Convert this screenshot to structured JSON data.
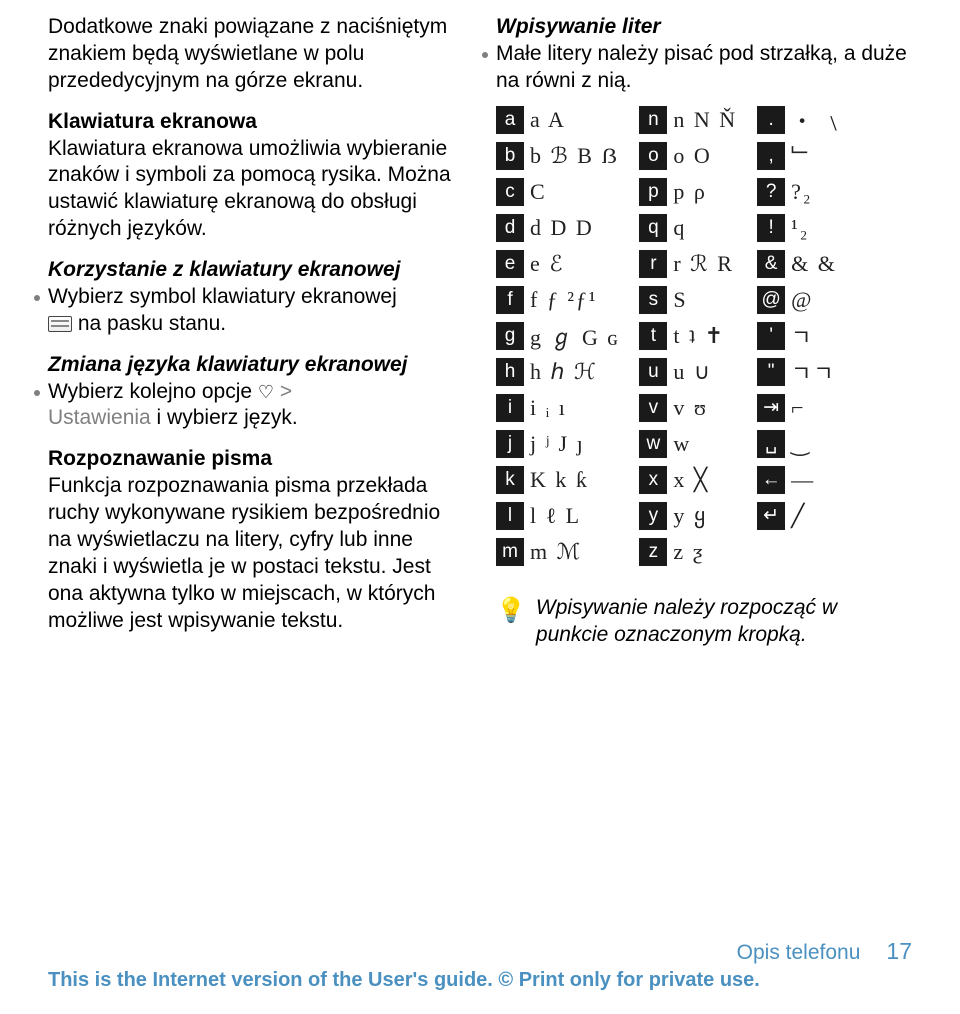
{
  "left": {
    "intro": "Dodatkowe znaki powiązane z naciśniętym znakiem będą wyświetlane w polu przededycyjnym na górze ekranu.",
    "kbd_title": "Klawiatura ekranowa",
    "kbd_body": "Klawiatura ekranowa umożliwia wybieranie znaków i symboli za pomocą rysika. Można ustawić klawiaturę ekranową do obsługi różnych języków.",
    "use_kbd_title": "Korzystanie z klawiatury ekranowej",
    "use_kbd_bullet_a": "Wybierz symbol klawiatury ekranowej",
    "use_kbd_bullet_b": "na pasku stanu.",
    "lang_title": "Zmiana języka klawiatury ekranowej",
    "lang_bullet_a": "Wybierz kolejno opcje ",
    "lang_bullet_b": "Ustawienia",
    "lang_bullet_c": " i wybierz język.",
    "hand_title": "Rozpoznawanie pisma",
    "hand_body": "Funkcja rozpoznawania pisma przekłada ruchy wykonywane rysikiem bezpośrednio na wyświetlaczu na litery, cyfry lub inne znaki i wyświetla je w postaci tekstu. Jest ona aktywna tylko w miejscach, w których możliwe jest wpisywanie tekstu."
  },
  "right": {
    "title": "Wpisywanie liter",
    "bullet": "Małe litery należy pisać pod strzałką, a duże na równi z nią.",
    "tip": "Wpisywanie należy rozpocząć w punkcie oznaczonym kropką.",
    "glyph_columns": [
      [
        {
          "key": "a",
          "sample": "a A"
        },
        {
          "key": "b",
          "sample": "b ℬ B ẞ"
        },
        {
          "key": "c",
          "sample": "C"
        },
        {
          "key": "d",
          "sample": "d D D"
        },
        {
          "key": "e",
          "sample": "e ℰ"
        },
        {
          "key": "f",
          "sample": "f ƒ ²ƒ¹"
        },
        {
          "key": "g",
          "sample": "g ℊ G ɢ"
        },
        {
          "key": "h",
          "sample": "h ℎ ℋ"
        },
        {
          "key": "i",
          "sample": "i ᵢ ı"
        },
        {
          "key": "j",
          "sample": "j ʲ J ȷ"
        },
        {
          "key": "k",
          "sample": "K k ƙ"
        },
        {
          "key": "l",
          "sample": "l ℓ L"
        },
        {
          "key": "m",
          "sample": "m ℳ"
        }
      ],
      [
        {
          "key": "n",
          "sample": "n N Ň"
        },
        {
          "key": "o",
          "sample": "o O"
        },
        {
          "key": "p",
          "sample": "p ρ"
        },
        {
          "key": "q",
          "sample": "q"
        },
        {
          "key": "r",
          "sample": "r ℛ R"
        },
        {
          "key": "s",
          "sample": "S"
        },
        {
          "key": "t",
          "sample": "t ʇ ✝"
        },
        {
          "key": "u",
          "sample": "u ∪"
        },
        {
          "key": "v",
          "sample": "v ʊ"
        },
        {
          "key": "w",
          "sample": "w"
        },
        {
          "key": "x",
          "sample": "x ╳"
        },
        {
          "key": "y",
          "sample": "y ყ"
        },
        {
          "key": "z",
          "sample": "z ƺ"
        }
      ],
      [
        {
          "key": ".",
          "sample": "・ ﹨"
        },
        {
          "key": ",",
          "sample": "﹂"
        },
        {
          "key": "?",
          "sample": "?₂"
        },
        {
          "key": "!",
          "sample": "¹₂"
        },
        {
          "key": "&",
          "sample": "& &"
        },
        {
          "key": "@",
          "sample": "@"
        },
        {
          "key": "'",
          "sample": "ㄱ"
        },
        {
          "key": "\"",
          "sample": "ㄱㄱ"
        },
        {
          "key": "⇥",
          "sample": "⌐"
        },
        {
          "key": "␣",
          "sample": "‿"
        },
        {
          "key": "←",
          "sample": "—"
        },
        {
          "key": "↵",
          "sample": "╱"
        }
      ]
    ]
  },
  "footer": {
    "chapter": "Opis telefonu",
    "page": "17",
    "note": "This is the Internet version of the User's guide. © Print only for private use."
  },
  "colors": {
    "key_bg": "#1a1a1a",
    "key_fg": "#ffffff",
    "footer_color": "#4a90c0",
    "bullet_grey": "#7f7f7f"
  }
}
